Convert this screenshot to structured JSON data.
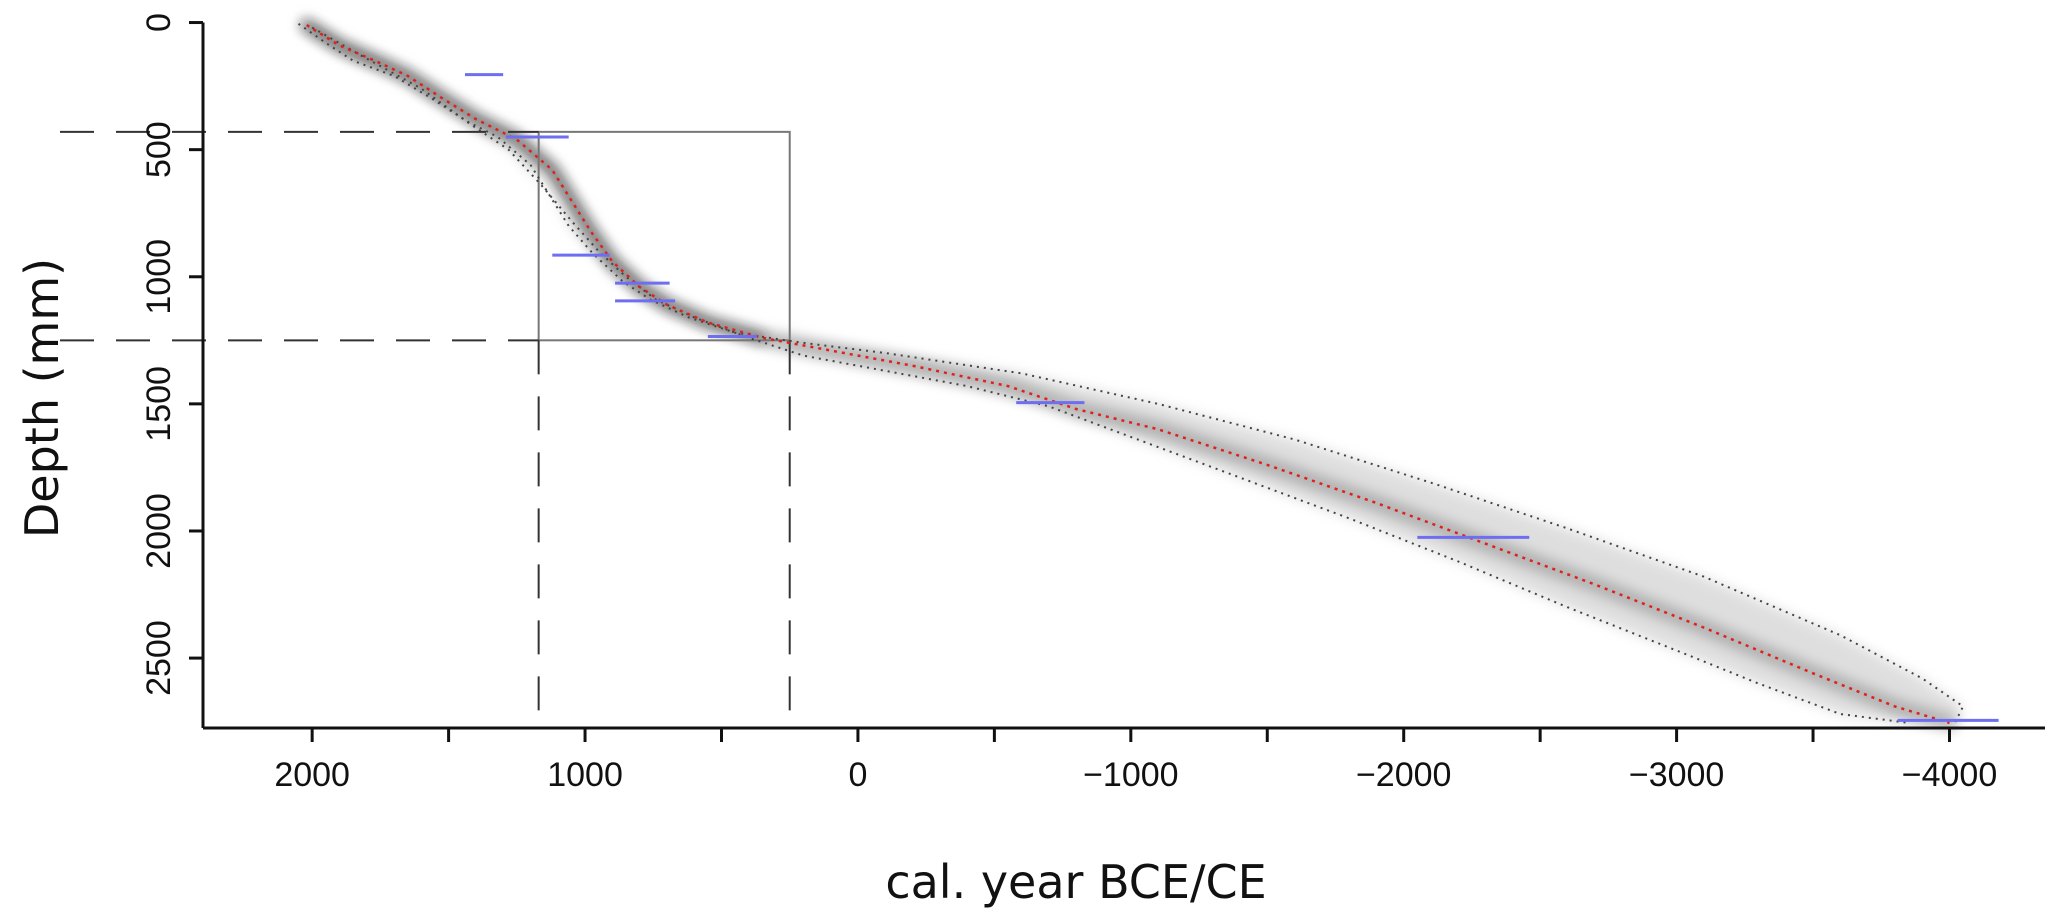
{
  "chart_data": {
    "type": "line",
    "title": "",
    "xlabel": "cal. year BCE/CE",
    "ylabel": "Depth (mm)",
    "xlim": [
      2400,
      -4350
    ],
    "ylim": [
      2775,
      -10
    ],
    "x_ticks": [
      2000,
      1500,
      1000,
      500,
      0,
      -500,
      -1000,
      -1500,
      -2000,
      -2500,
      -3000,
      -3500,
      -4000
    ],
    "x_tick_labels": [
      {
        "value": 2000,
        "text": "2000"
      },
      {
        "value": 1000,
        "text": "1000"
      },
      {
        "value": 0,
        "text": "0"
      },
      {
        "value": -1000,
        "text": "−1000"
      },
      {
        "value": -2000,
        "text": "−2000"
      },
      {
        "value": -3000,
        "text": "−3000"
      },
      {
        "value": -4000,
        "text": "−4000"
      }
    ],
    "y_ticks": [
      0,
      500,
      1000,
      1500,
      2000,
      2500
    ],
    "y_tick_labels": [
      {
        "value": 0,
        "text": "0"
      },
      {
        "value": 500,
        "text": "500"
      },
      {
        "value": 1000,
        "text": "1000"
      },
      {
        "value": 1500,
        "text": "1500"
      },
      {
        "value": 2000,
        "text": "2000"
      },
      {
        "value": 2500,
        "text": "2500"
      }
    ],
    "grid": false,
    "series": [
      {
        "role": "median",
        "color": "#e0201c",
        "style": "dotted",
        "points": [
          [
            2020,
            10
          ],
          [
            1900,
            90
          ],
          [
            1750,
            160
          ],
          [
            1650,
            210
          ],
          [
            1520,
            300
          ],
          [
            1400,
            380
          ],
          [
            1250,
            460
          ],
          [
            1120,
            580
          ],
          [
            1050,
            700
          ],
          [
            980,
            820
          ],
          [
            900,
            940
          ],
          [
            800,
            1040
          ],
          [
            700,
            1110
          ],
          [
            550,
            1180
          ],
          [
            350,
            1240
          ],
          [
            100,
            1290
          ],
          [
            -200,
            1350
          ],
          [
            -550,
            1430
          ],
          [
            -800,
            1520
          ],
          [
            -1100,
            1600
          ],
          [
            -1500,
            1740
          ],
          [
            -1900,
            1890
          ],
          [
            -2300,
            2050
          ],
          [
            -2700,
            2210
          ],
          [
            -3100,
            2380
          ],
          [
            -3500,
            2560
          ],
          [
            -3800,
            2690
          ],
          [
            -4000,
            2755
          ]
        ]
      },
      {
        "role": "lower-95-range",
        "color": "#444444",
        "style": "dotted",
        "points": [
          [
            2050,
            5
          ],
          [
            1950,
            80
          ],
          [
            1850,
            150
          ],
          [
            1700,
            210
          ],
          [
            1560,
            300
          ],
          [
            1430,
            390
          ],
          [
            1320,
            450
          ],
          [
            1200,
            560
          ],
          [
            1130,
            680
          ],
          [
            1060,
            800
          ],
          [
            970,
            910
          ],
          [
            860,
            1020
          ],
          [
            760,
            1090
          ],
          [
            620,
            1160
          ],
          [
            450,
            1220
          ],
          [
            200,
            1260
          ],
          [
            -100,
            1300
          ],
          [
            -600,
            1380
          ],
          [
            -1100,
            1500
          ],
          [
            -1600,
            1640
          ],
          [
            -2100,
            1810
          ],
          [
            -2600,
            1990
          ],
          [
            -3100,
            2180
          ],
          [
            -3600,
            2410
          ],
          [
            -3900,
            2580
          ],
          [
            -4050,
            2690
          ],
          [
            -4020,
            2755
          ]
        ]
      },
      {
        "role": "upper-95-range",
        "color": "#444444",
        "style": "dotted",
        "points": [
          [
            2000,
            20
          ],
          [
            1820,
            130
          ],
          [
            1600,
            260
          ],
          [
            1420,
            400
          ],
          [
            1280,
            500
          ],
          [
            1160,
            640
          ],
          [
            1050,
            780
          ],
          [
            950,
            900
          ],
          [
            850,
            1000
          ],
          [
            740,
            1090
          ],
          [
            600,
            1160
          ],
          [
            400,
            1240
          ],
          [
            200,
            1310
          ],
          [
            -100,
            1370
          ],
          [
            -400,
            1430
          ],
          [
            -700,
            1510
          ],
          [
            -1000,
            1630
          ],
          [
            -1400,
            1790
          ],
          [
            -1800,
            1950
          ],
          [
            -2200,
            2120
          ],
          [
            -2600,
            2300
          ],
          [
            -3000,
            2470
          ],
          [
            -3300,
            2600
          ],
          [
            -3600,
            2720
          ],
          [
            -3850,
            2755
          ]
        ]
      }
    ],
    "dated_levels": [
      {
        "depth": 205,
        "x_min": 1300,
        "x_max": 1440
      },
      {
        "depth": 450,
        "x_min": 1060,
        "x_max": 1290
      },
      {
        "depth": 915,
        "x_min": 910,
        "x_max": 1120
      },
      {
        "depth": 1025,
        "x_min": 690,
        "x_max": 890
      },
      {
        "depth": 1095,
        "x_min": 670,
        "x_max": 890
      },
      {
        "depth": 1235,
        "x_min": 370,
        "x_max": 550
      },
      {
        "depth": 1495,
        "x_min": -830,
        "x_max": -580
      },
      {
        "depth": 2025,
        "x_min": -2460,
        "x_max": -2050
      },
      {
        "depth": 2745,
        "x_min": -4180,
        "x_max": -3810
      }
    ],
    "zoom_region": {
      "x_from": 1170,
      "x_to": 250,
      "depth_from": 430,
      "depth_to": 1250
    },
    "colors": {
      "median": "#e0201c",
      "range": "#444444",
      "dates": "#6e6ef0",
      "envelope": "#b8b8b8",
      "axes": "#111111",
      "zoom_box": "#777777"
    }
  }
}
